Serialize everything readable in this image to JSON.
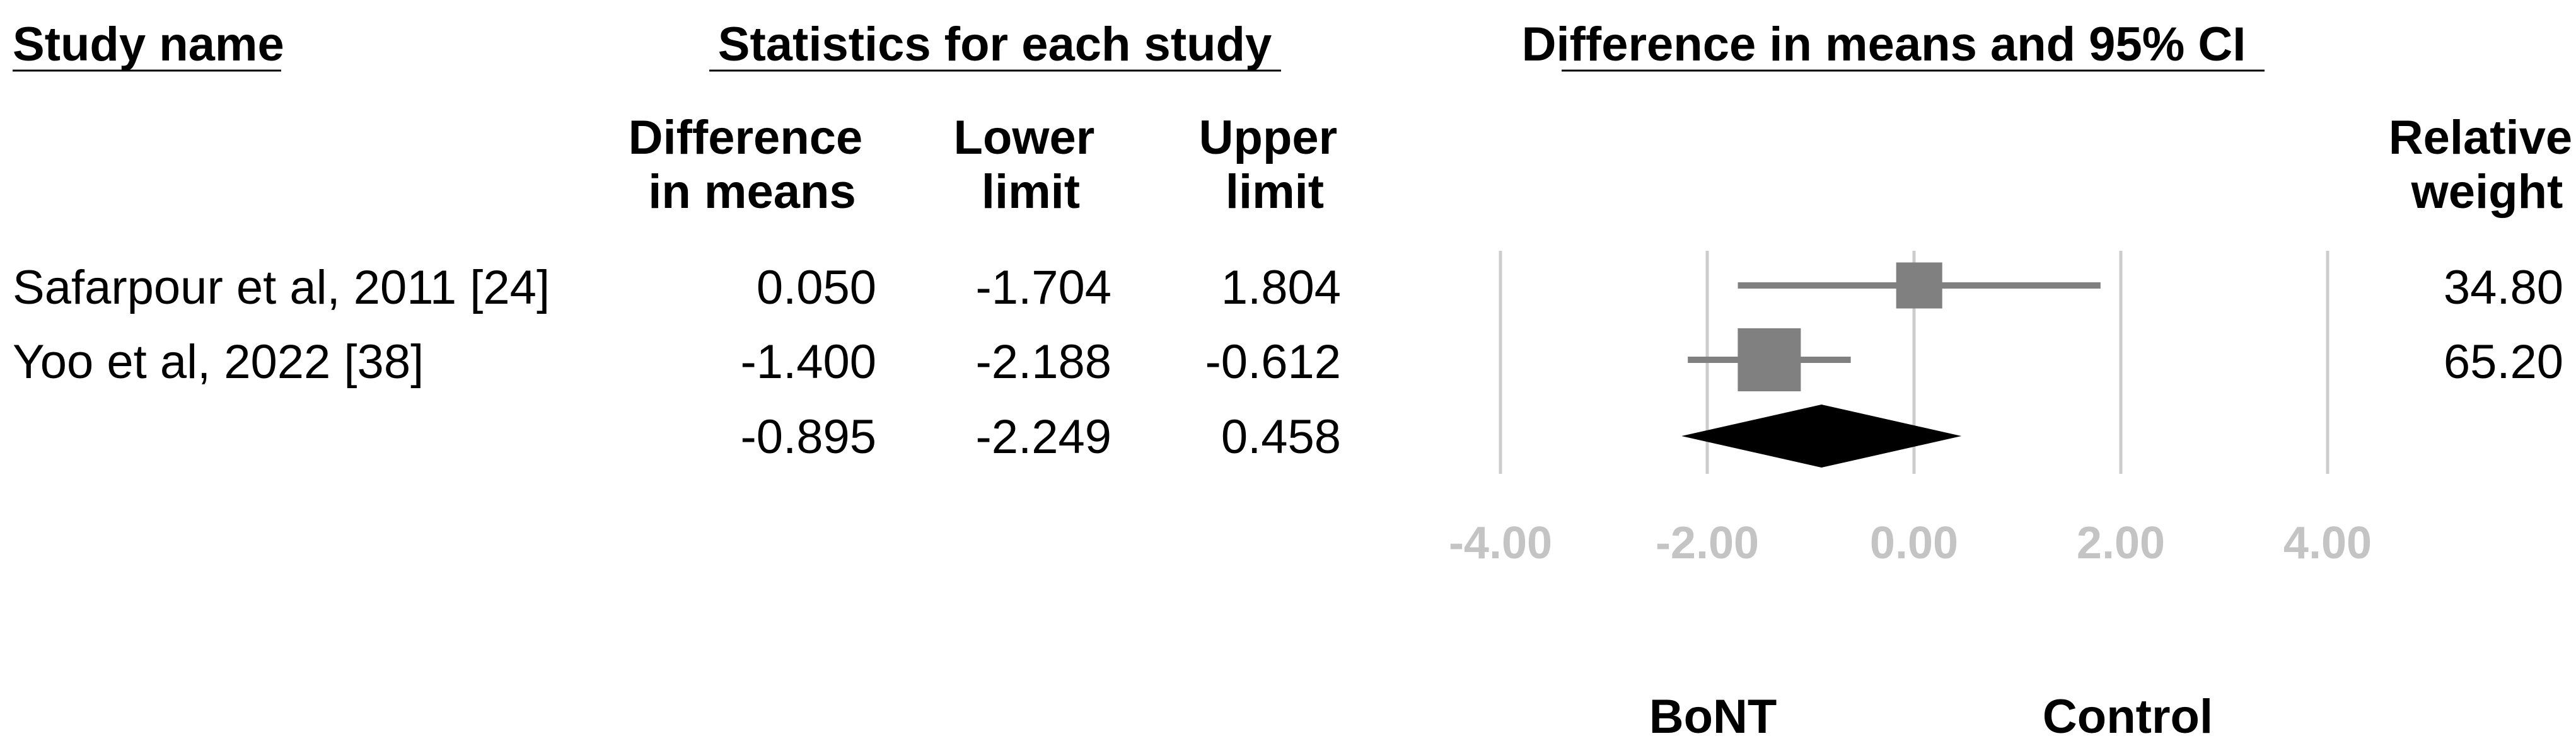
{
  "headers": {
    "study_name": "Study name",
    "statistics": "Statistics for each study",
    "plot": "Difference in means and 95% CI"
  },
  "columns": {
    "diff": [
      "Difference",
      "in means"
    ],
    "lower": [
      "Lower",
      "limit"
    ],
    "upper": [
      "Upper",
      "limit"
    ],
    "weight": [
      "Relative",
      "weight"
    ]
  },
  "colors": {
    "study_marker": "#808080",
    "summary_marker": "#000000",
    "gridline": "#cccccc",
    "tick_label": "#c4c4c4"
  },
  "chart_data": {
    "type": "forest",
    "title": "Difference in means and 95% CI",
    "xlim": [
      -4,
      4
    ],
    "xticks": [
      -4,
      -2,
      0,
      2,
      4
    ],
    "tick_labels": [
      "-4.00",
      "-2.00",
      "0.00",
      "2.00",
      "4.00"
    ],
    "grid": true,
    "studies": [
      {
        "name": "Safarpour et al, 2011 [24]",
        "diff": "0.050",
        "lower": "-1.704",
        "upper": "1.804",
        "weight": "34.80"
      },
      {
        "name": "Yoo et al, 2022 [38]",
        "diff": "-1.400",
        "lower": "-2.188",
        "upper": "-0.612",
        "weight": "65.20"
      }
    ],
    "summary": {
      "diff": "-0.895",
      "lower": "-2.249",
      "upper": "0.458"
    },
    "favors": {
      "left": "BoNT",
      "right": "Control"
    }
  }
}
